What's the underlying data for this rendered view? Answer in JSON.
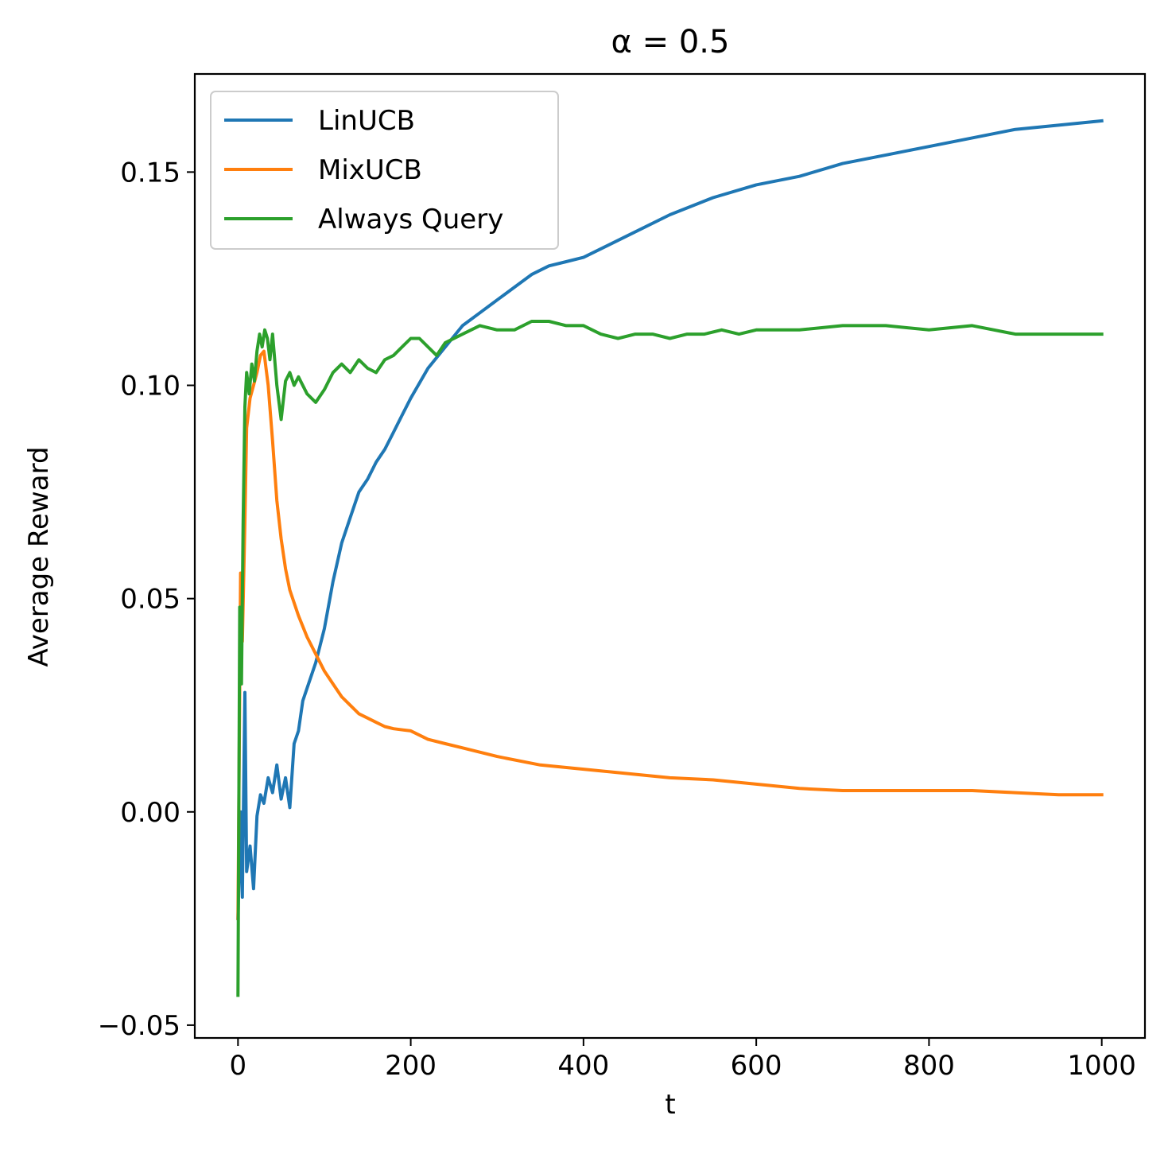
{
  "chart_data": {
    "type": "line",
    "title": "α = 0.5",
    "xlabel": "t",
    "ylabel": "Average Reward",
    "xlim": [
      -50,
      1050
    ],
    "ylim": [
      -0.053,
      0.173
    ],
    "xticks": [
      0,
      200,
      400,
      600,
      800,
      1000
    ],
    "xtick_labels": [
      "0",
      "200",
      "400",
      "600",
      "800",
      "1000"
    ],
    "yticks": [
      -0.05,
      0.0,
      0.05,
      0.1,
      0.15
    ],
    "ytick_labels": [
      "−0.05",
      "0.00",
      "0.05",
      "0.10",
      "0.15"
    ],
    "grid": false,
    "legend_position": "upper-left",
    "series": [
      {
        "name": "LinUCB",
        "color": "#1f77b4",
        "x": [
          0,
          3,
          5,
          8,
          10,
          14,
          18,
          22,
          26,
          30,
          35,
          40,
          45,
          50,
          55,
          60,
          65,
          70,
          75,
          80,
          90,
          100,
          110,
          120,
          130,
          140,
          150,
          160,
          170,
          180,
          190,
          200,
          220,
          240,
          260,
          280,
          300,
          320,
          340,
          360,
          380,
          400,
          450,
          500,
          550,
          600,
          650,
          700,
          750,
          800,
          850,
          900,
          950,
          1000
        ],
        "y": [
          -0.025,
          0.0,
          -0.02,
          0.028,
          -0.014,
          -0.008,
          -0.018,
          -0.001,
          0.004,
          0.002,
          0.008,
          0.0045,
          0.011,
          0.003,
          0.008,
          0.001,
          0.016,
          0.019,
          0.026,
          0.029,
          0.035,
          0.043,
          0.054,
          0.063,
          0.069,
          0.075,
          0.078,
          0.082,
          0.085,
          0.089,
          0.093,
          0.097,
          0.104,
          0.109,
          0.114,
          0.117,
          0.12,
          0.123,
          0.126,
          0.128,
          0.129,
          0.13,
          0.135,
          0.14,
          0.144,
          0.147,
          0.149,
          0.152,
          0.154,
          0.156,
          0.158,
          0.16,
          0.161,
          0.162
        ]
      },
      {
        "name": "MixUCB",
        "color": "#ff7f0e",
        "x": [
          0,
          3,
          5,
          8,
          10,
          14,
          18,
          22,
          26,
          30,
          35,
          40,
          45,
          50,
          55,
          60,
          70,
          80,
          90,
          100,
          110,
          120,
          130,
          140,
          150,
          160,
          170,
          180,
          200,
          220,
          240,
          260,
          280,
          300,
          350,
          400,
          450,
          500,
          550,
          600,
          650,
          700,
          750,
          800,
          850,
          900,
          950,
          1000
        ],
        "y": [
          -0.025,
          0.056,
          0.04,
          0.068,
          0.09,
          0.097,
          0.1,
          0.103,
          0.107,
          0.108,
          0.1,
          0.087,
          0.073,
          0.064,
          0.057,
          0.052,
          0.046,
          0.041,
          0.037,
          0.033,
          0.03,
          0.027,
          0.025,
          0.023,
          0.022,
          0.021,
          0.02,
          0.0195,
          0.019,
          0.017,
          0.016,
          0.015,
          0.014,
          0.013,
          0.011,
          0.01,
          0.009,
          0.008,
          0.0075,
          0.0065,
          0.0055,
          0.005,
          0.005,
          0.005,
          0.005,
          0.0045,
          0.004,
          0.004
        ]
      },
      {
        "name": "Always Query",
        "color": "#2ca02c",
        "x": [
          0,
          2,
          4,
          6,
          8,
          10,
          13,
          16,
          19,
          22,
          25,
          28,
          31,
          34,
          37,
          40,
          45,
          50,
          55,
          60,
          65,
          70,
          80,
          90,
          100,
          110,
          120,
          130,
          140,
          150,
          160,
          170,
          180,
          190,
          200,
          210,
          220,
          230,
          240,
          260,
          280,
          300,
          320,
          340,
          350,
          360,
          380,
          400,
          420,
          440,
          460,
          480,
          500,
          520,
          540,
          560,
          580,
          600,
          650,
          700,
          750,
          800,
          850,
          900,
          950,
          1000
        ],
        "y": [
          -0.043,
          0.048,
          0.03,
          0.068,
          0.095,
          0.103,
          0.098,
          0.105,
          0.101,
          0.108,
          0.112,
          0.109,
          0.113,
          0.111,
          0.106,
          0.112,
          0.1,
          0.092,
          0.101,
          0.103,
          0.1,
          0.102,
          0.098,
          0.096,
          0.099,
          0.103,
          0.105,
          0.103,
          0.106,
          0.104,
          0.103,
          0.106,
          0.107,
          0.109,
          0.111,
          0.111,
          0.109,
          0.107,
          0.11,
          0.112,
          0.114,
          0.113,
          0.113,
          0.115,
          0.115,
          0.115,
          0.114,
          0.114,
          0.112,
          0.111,
          0.112,
          0.112,
          0.111,
          0.112,
          0.112,
          0.113,
          0.112,
          0.113,
          0.113,
          0.114,
          0.114,
          0.113,
          0.114,
          0.112,
          0.112,
          0.112
        ]
      }
    ]
  }
}
